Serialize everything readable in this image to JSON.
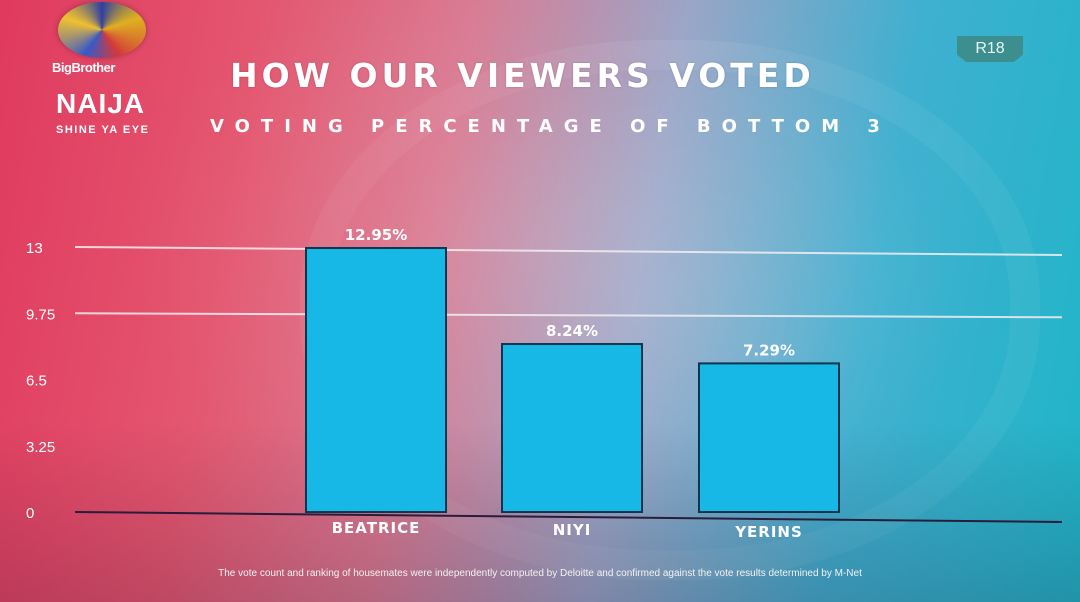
{
  "broadcast": {
    "logo_top_text": "BigBrother",
    "logo_main_text": "NAIJA",
    "logo_tagline": "SHINE YA EYE",
    "rating_badge": "R18"
  },
  "footnote": "The vote count and ranking of housemates were independently computed by Deloitte and confirmed against the vote results determined by M-Net",
  "colors": {
    "bar": "#17b8e6",
    "bar_border": "#0c3550",
    "grid": "#f3eef3",
    "axis": "#2a1c3a"
  },
  "chart_data": {
    "type": "bar",
    "title": "HOW OUR VIEWERS VOTED",
    "subtitle": "VOTING PERCENTAGE OF BOTTOM 3",
    "categories": [
      "BEATRICE",
      "NIYI",
      "YERINS"
    ],
    "values": [
      12.95,
      8.24,
      7.29
    ],
    "data_labels": [
      "12.95%",
      "8.24%",
      "7.29%"
    ],
    "yticks": [
      "0",
      "3.25",
      "6.5",
      "9.75",
      "13"
    ],
    "ylim": [
      0,
      13
    ],
    "grid_lines_at": [
      9.75,
      13
    ],
    "legend": "none"
  }
}
